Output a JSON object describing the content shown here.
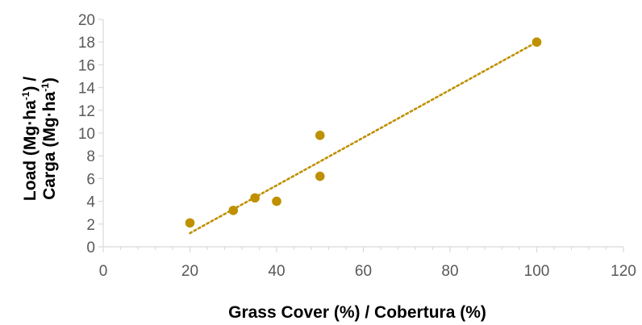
{
  "chart_data": {
    "type": "scatter",
    "xlabel": "Grass Cover (%) / Cobertura (%)",
    "ylabel_line1": "Load (Mg·ha",
    "ylabel_line1_sup": "-1",
    "ylabel_line1_end": ") /",
    "ylabel_line2": "Carga (Mg·ha",
    "ylabel_line2_sup": "-1",
    "ylabel_line2_end": ")",
    "xlim": [
      0,
      120
    ],
    "ylim": [
      0,
      20
    ],
    "x_ticks": [
      0,
      20,
      40,
      60,
      80,
      100,
      120
    ],
    "y_ticks": [
      0,
      2,
      4,
      6,
      8,
      10,
      12,
      14,
      16,
      18,
      20
    ],
    "series": [
      {
        "x": [
          20,
          30,
          35,
          40,
          50,
          50,
          100
        ],
        "y": [
          2.1,
          3.2,
          4.3,
          4.0,
          9.8,
          6.2,
          18.0
        ]
      }
    ],
    "trendline": {
      "type": "linear",
      "style": "dotted",
      "x": [
        20,
        100
      ],
      "y": [
        1.2,
        18.0
      ]
    },
    "grid": false,
    "legend": "none",
    "colors": {
      "marker": "#BF9000",
      "trendline": "#BF9000",
      "axis": "#D9D9D9",
      "tick_text": "#595959"
    }
  }
}
